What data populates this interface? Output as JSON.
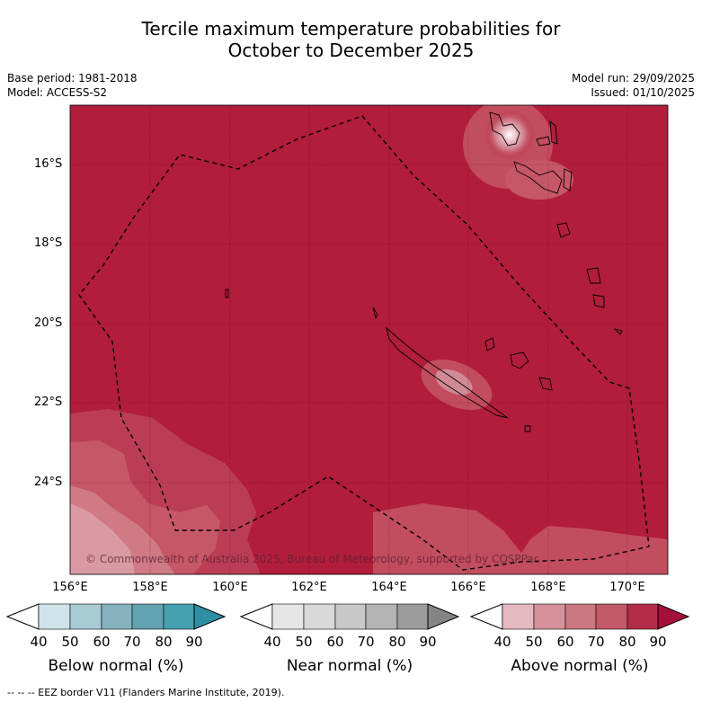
{
  "title_line1": "Tercile maximum temperature probabilities for",
  "title_line2": "October to December 2025",
  "meta_left": {
    "base_period": "Base period: 1981-2018",
    "model": "Model: ACCESS-S2"
  },
  "meta_right": {
    "model_run": "Model run: 29/09/2025",
    "issued": "Issued: 01/10/2025"
  },
  "y_ticks": [
    "16°S",
    "18°S",
    "20°S",
    "22°S",
    "24°S"
  ],
  "x_ticks": [
    "156°E",
    "158°E",
    "160°E",
    "162°E",
    "164°E",
    "166°E",
    "168°E",
    "170°E"
  ],
  "copyright": "© Commonwealth of Australia 2025, Bureau of Meteorology, supported by COSPPac",
  "colorbars": [
    {
      "title": "Below normal (%)",
      "ticks": [
        "40",
        "50",
        "60",
        "70",
        "80",
        "90"
      ],
      "colors": [
        "#ffffff",
        "#cfe4ea",
        "#a9cbd3",
        "#84b3bf",
        "#62a2b0",
        "#45a0b1",
        "#2d8fa3"
      ]
    },
    {
      "title": "Near normal (%)",
      "ticks": [
        "40",
        "50",
        "60",
        "70",
        "80",
        "90"
      ],
      "colors": [
        "#ffffff",
        "#e6e6e6",
        "#d9d9d9",
        "#c8c8c8",
        "#b4b4b4",
        "#9c9c9c",
        "#858585"
      ]
    },
    {
      "title": "Above normal (%)",
      "ticks": [
        "40",
        "50",
        "60",
        "70",
        "80",
        "90"
      ],
      "colors": [
        "#ffffff",
        "#e5b9c1",
        "#d6919b",
        "#cc7880",
        "#c25a68",
        "#b32d48",
        "#a4103a"
      ]
    }
  ],
  "footer": "--  --  -- EEZ border V11 (Flanders Marine Institute, 2019).",
  "colors": {
    "above_80": "#b11d3b",
    "above_70": "#c24d5e",
    "above_60": "#cc7480",
    "above_50": "#d99aa4"
  }
}
